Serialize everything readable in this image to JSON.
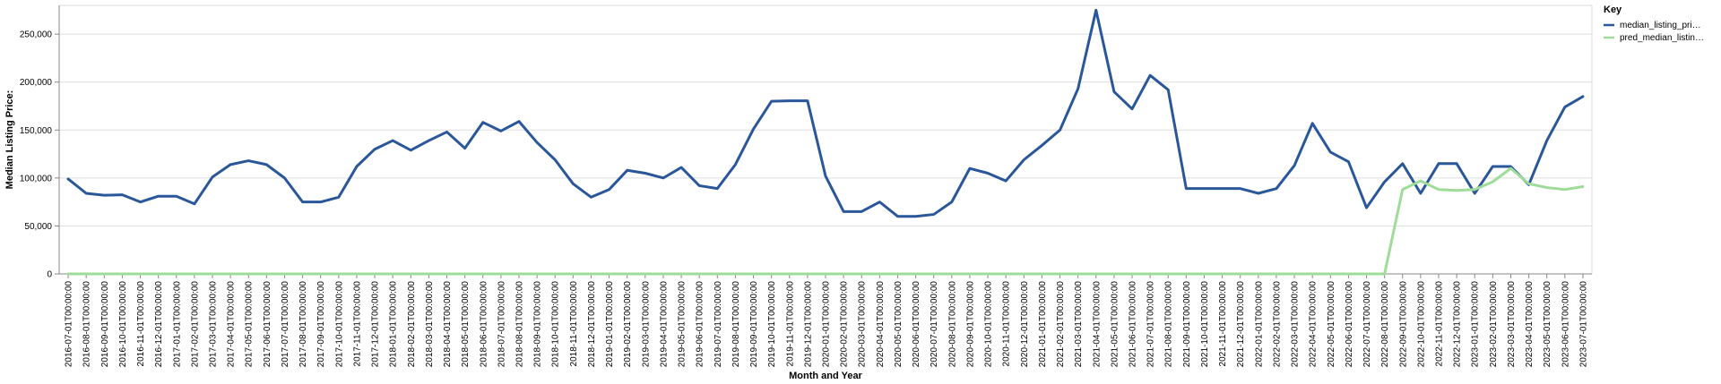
{
  "chart_data": {
    "type": "line",
    "xlabel": "Month and Year",
    "ylabel": "Median Listing Price:",
    "ylim": [
      0,
      280000
    ],
    "y_ticks": [
      0,
      50000,
      100000,
      150000,
      200000,
      250000
    ],
    "y_tick_labels": [
      "0",
      "50,000",
      "100,000",
      "150,000",
      "200,000",
      "250,000"
    ],
    "grid": true,
    "legend": {
      "title": "Key",
      "placement": "top-right",
      "entries": [
        "median_listing_pri…",
        "pred_median_listin…"
      ]
    },
    "categories": [
      "2016-07-01T00:00:00",
      "2016-08-01T00:00:00",
      "2016-09-01T00:00:00",
      "2016-10-01T00:00:00",
      "2016-11-01T00:00:00",
      "2016-12-01T00:00:00",
      "2017-01-01T00:00:00",
      "2017-02-01T00:00:00",
      "2017-03-01T00:00:00",
      "2017-04-01T00:00:00",
      "2017-05-01T00:00:00",
      "2017-06-01T00:00:00",
      "2017-07-01T00:00:00",
      "2017-08-01T00:00:00",
      "2017-09-01T00:00:00",
      "2017-10-01T00:00:00",
      "2017-11-01T00:00:00",
      "2017-12-01T00:00:00",
      "2018-01-01T00:00:00",
      "2018-02-01T00:00:00",
      "2018-03-01T00:00:00",
      "2018-04-01T00:00:00",
      "2018-05-01T00:00:00",
      "2018-06-01T00:00:00",
      "2018-07-01T00:00:00",
      "2018-08-01T00:00:00",
      "2018-09-01T00:00:00",
      "2018-10-01T00:00:00",
      "2018-11-01T00:00:00",
      "2018-12-01T00:00:00",
      "2019-01-01T00:00:00",
      "2019-02-01T00:00:00",
      "2019-03-01T00:00:00",
      "2019-04-01T00:00:00",
      "2019-05-01T00:00:00",
      "2019-06-01T00:00:00",
      "2019-07-01T00:00:00",
      "2019-08-01T00:00:00",
      "2019-09-01T00:00:00",
      "2019-10-01T00:00:00",
      "2019-11-01T00:00:00",
      "2019-12-01T00:00:00",
      "2020-01-01T00:00:00",
      "2020-02-01T00:00:00",
      "2020-03-01T00:00:00",
      "2020-04-01T00:00:00",
      "2020-05-01T00:00:00",
      "2020-06-01T00:00:00",
      "2020-07-01T00:00:00",
      "2020-08-01T00:00:00",
      "2020-09-01T00:00:00",
      "2020-10-01T00:00:00",
      "2020-11-01T00:00:00",
      "2020-12-01T00:00:00",
      "2021-01-01T00:00:00",
      "2021-02-01T00:00:00",
      "2021-03-01T00:00:00",
      "2021-04-01T00:00:00",
      "2021-05-01T00:00:00",
      "2021-06-01T00:00:00",
      "2021-07-01T00:00:00",
      "2021-08-01T00:00:00",
      "2021-09-01T00:00:00",
      "2021-10-01T00:00:00",
      "2021-11-01T00:00:00",
      "2021-12-01T00:00:00",
      "2022-01-01T00:00:00",
      "2022-02-01T00:00:00",
      "2022-03-01T00:00:00",
      "2022-04-01T00:00:00",
      "2022-05-01T00:00:00",
      "2022-06-01T00:00:00",
      "2022-07-01T00:00:00",
      "2022-08-01T00:00:00",
      "2022-09-01T00:00:00",
      "2022-10-01T00:00:00",
      "2022-11-01T00:00:00",
      "2022-12-01T00:00:00",
      "2023-01-01T00:00:00",
      "2023-02-01T00:00:00",
      "2023-03-01T00:00:00",
      "2023-04-01T00:00:00",
      "2023-05-01T00:00:00",
      "2023-06-01T00:00:00",
      "2023-07-01T00:00:00"
    ],
    "series": [
      {
        "name": "median_listing_pri…",
        "color": "#2a579a",
        "values": [
          99000,
          84000,
          82000,
          82500,
          75000,
          81000,
          81000,
          73000,
          101000,
          114000,
          118000,
          114000,
          100000,
          75000,
          75000,
          80000,
          112000,
          130000,
          139000,
          129000,
          139000,
          148000,
          131000,
          158000,
          149000,
          159000,
          137000,
          119000,
          94000,
          80000,
          88000,
          108000,
          105000,
          100000,
          111000,
          92000,
          89000,
          114000,
          151000,
          180000,
          180500,
          180500,
          102000,
          65000,
          65000,
          75000,
          60000,
          60000,
          62000,
          75000,
          110000,
          105000,
          97000,
          119000,
          134000,
          150000,
          193000,
          275000,
          190000,
          172000,
          207000,
          192000,
          89000,
          89000,
          89000,
          89000,
          84000,
          89000,
          113000,
          157000,
          127000,
          117000,
          69000,
          96000,
          115000,
          84000,
          115000,
          115000,
          84000,
          112000,
          112000,
          93000,
          139000,
          174000,
          185000
        ]
      },
      {
        "name": "pred_median_listin…",
        "color": "#9fdc9a",
        "values": [
          0,
          0,
          0,
          0,
          0,
          0,
          0,
          0,
          0,
          0,
          0,
          0,
          0,
          0,
          0,
          0,
          0,
          0,
          0,
          0,
          0,
          0,
          0,
          0,
          0,
          0,
          0,
          0,
          0,
          0,
          0,
          0,
          0,
          0,
          0,
          0,
          0,
          0,
          0,
          0,
          0,
          0,
          0,
          0,
          0,
          0,
          0,
          0,
          0,
          0,
          0,
          0,
          0,
          0,
          0,
          0,
          0,
          0,
          0,
          0,
          0,
          0,
          0,
          0,
          0,
          0,
          0,
          0,
          0,
          0,
          0,
          0,
          0,
          0,
          88000,
          97000,
          88000,
          87000,
          88000,
          96000,
          110000,
          94000,
          90000,
          88000,
          91000
        ]
      }
    ]
  }
}
